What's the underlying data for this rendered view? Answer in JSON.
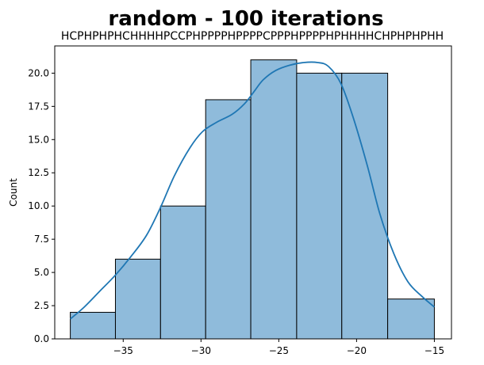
{
  "chart_data": {
    "type": "bar",
    "title": "random - 100 iterations",
    "subtitle": "HCPHPHPHCHHHHPCCPHPPPPHPPPPCPPPHPPPPHPHHHHCHPHPHPHH",
    "xlabel": "",
    "ylabel": "Count",
    "xlim": [
      -39.4,
      -13.9
    ],
    "ylim": [
      0,
      22.05
    ],
    "xticks": [
      -35,
      -30,
      -25,
      -20,
      -15
    ],
    "xtick_labels": [
      "−35",
      "−30",
      "−25",
      "−20",
      "−15"
    ],
    "yticks": [
      0.0,
      2.5,
      5.0,
      7.5,
      10.0,
      12.5,
      15.0,
      17.5,
      20.0
    ],
    "ytick_labels": [
      "0.0",
      "2.5",
      "5.0",
      "7.5",
      "10.0",
      "12.5",
      "15.0",
      "17.5",
      "20.0"
    ],
    "bins": [
      {
        "x0": -38.4,
        "x1": -35.5,
        "count": 2
      },
      {
        "x0": -35.5,
        "x1": -32.6,
        "count": 6
      },
      {
        "x0": -32.6,
        "x1": -29.7,
        "count": 10
      },
      {
        "x0": -29.7,
        "x1": -26.8,
        "count": 18
      },
      {
        "x0": -26.8,
        "x1": -23.85,
        "count": 21
      },
      {
        "x0": -23.85,
        "x1": -20.95,
        "count": 20
      },
      {
        "x0": -20.95,
        "x1": -18.0,
        "count": 20
      },
      {
        "x0": -18.0,
        "x1": -15.0,
        "count": 3
      }
    ],
    "kde": {
      "x": [
        -38.4,
        -37.5,
        -36.5,
        -35.5,
        -34.5,
        -33.5,
        -32.6,
        -31.7,
        -30.7,
        -29.9,
        -29.0,
        -28.0,
        -27.2,
        -26.6,
        -26.0,
        -25.2,
        -24.3,
        -23.4,
        -22.5,
        -21.8,
        -21.0,
        -20.2,
        -19.3,
        -18.5,
        -17.6,
        -16.7,
        -15.8,
        -15.0
      ],
      "y": [
        1.5,
        2.4,
        3.6,
        4.8,
        6.2,
        7.8,
        9.9,
        12.3,
        14.4,
        15.6,
        16.3,
        16.9,
        17.7,
        18.6,
        19.5,
        20.2,
        20.6,
        20.8,
        20.8,
        20.5,
        19.2,
        16.6,
        13.0,
        9.4,
        6.4,
        4.3,
        3.2,
        2.4
      ]
    },
    "grid": false,
    "colors": {
      "bar_fill": "#8fbbdb",
      "bar_edge": "#000000",
      "kde_line": "#1f77b4"
    }
  }
}
